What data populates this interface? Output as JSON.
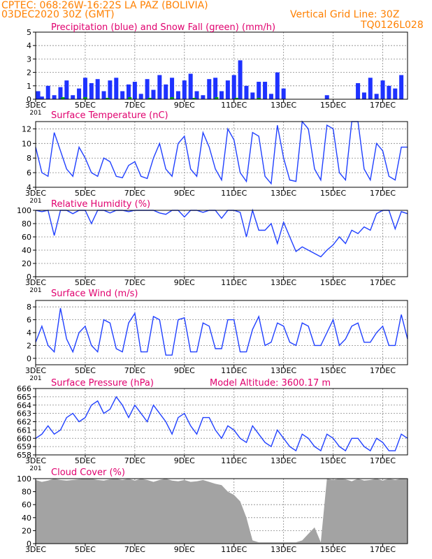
{
  "header": {
    "line1": "CPTEC:   068:26W-16:22S   LA PAZ (BOLIVIA)",
    "line2": "03DEC2020 30Z (GMT)",
    "grid_note": "Vertical Grid Line: 30Z",
    "code": "TQ0126L028"
  },
  "x_tick_labels": [
    "3DEC",
    "5DEC",
    "7DEC",
    "9DEC",
    "11DEC",
    "13DEC",
    "15DEC",
    "17DEC"
  ],
  "x_tick_days": [
    0,
    2,
    4,
    6,
    8,
    10,
    12,
    14
  ],
  "x_range_days": [
    0,
    15
  ],
  "stub_label": "201",
  "colors": {
    "title": "#e0006e",
    "line": "#2040ff",
    "precip": "#1e32ff",
    "snow": "#00b000",
    "cloud": "#a3a3a3",
    "header": "#ff8000"
  },
  "chart_data": [
    {
      "type": "bar",
      "title": "Precipitation (blue) and Snow Fall (green) (mm/h)",
      "ylim": [
        0,
        5
      ],
      "yticks": [
        0,
        1,
        2,
        3,
        4,
        5
      ],
      "series": [
        {
          "name": "Precipitation",
          "color": "#1e32ff",
          "x": [
            0.1,
            0.25,
            0.5,
            0.75,
            1.0,
            1.25,
            1.5,
            1.75,
            2.0,
            2.25,
            2.5,
            2.75,
            3.0,
            3.25,
            3.5,
            3.75,
            4.0,
            4.25,
            4.5,
            4.75,
            5.0,
            5.25,
            5.5,
            5.75,
            6.0,
            6.25,
            6.5,
            6.75,
            7.0,
            7.25,
            7.5,
            7.75,
            8.0,
            8.25,
            8.5,
            8.75,
            9.0,
            9.25,
            9.5,
            9.75,
            10.0,
            11.75,
            13.0,
            13.25,
            13.5,
            13.75,
            14.0,
            14.25,
            14.5,
            14.75
          ],
          "values": [
            0.6,
            0.2,
            1.0,
            0.3,
            0.9,
            1.4,
            0.3,
            0.8,
            1.6,
            1.2,
            1.5,
            0.6,
            1.4,
            1.6,
            0.6,
            1.1,
            1.3,
            0.4,
            1.5,
            0.7,
            1.8,
            1.1,
            1.6,
            0.6,
            1.4,
            1.9,
            0.6,
            0.3,
            1.5,
            1.6,
            0.6,
            1.4,
            1.8,
            2.9,
            1.0,
            0.5,
            1.3,
            1.3,
            0.4,
            2.0,
            0.8,
            0.3,
            1.2,
            0.5,
            1.6,
            0.4,
            1.4,
            1.0,
            0.8,
            1.8
          ]
        },
        {
          "name": "Snow Fall",
          "color": "#00b000",
          "x": [
            1.1,
            2.0,
            2.9,
            3.8,
            4.6,
            5.5,
            6.4,
            7.3,
            8.1,
            9.0
          ],
          "values": [
            0.15,
            0.15,
            0.1,
            0.15,
            0.1,
            0.15,
            0.1,
            0.15,
            0.1,
            0.1
          ]
        }
      ]
    },
    {
      "type": "line",
      "title": "Surface Temperature (nC)",
      "ylim": [
        4,
        13
      ],
      "yticks": [
        4,
        6,
        8,
        10,
        12
      ],
      "x": [
        0,
        0.25,
        0.5,
        0.75,
        1.0,
        1.25,
        1.5,
        1.75,
        2.0,
        2.25,
        2.5,
        2.75,
        3.0,
        3.25,
        3.5,
        3.75,
        4.0,
        4.25,
        4.5,
        4.75,
        5.0,
        5.25,
        5.5,
        5.75,
        6.0,
        6.25,
        6.5,
        6.75,
        7.0,
        7.25,
        7.5,
        7.75,
        8.0,
        8.25,
        8.5,
        8.75,
        9.0,
        9.25,
        9.5,
        9.75,
        10.0,
        10.25,
        10.5,
        10.75,
        11.0,
        11.25,
        11.5,
        11.75,
        12.0,
        12.25,
        12.5,
        12.75,
        13.0,
        13.25,
        13.5,
        13.75,
        14.0,
        14.25,
        14.5,
        14.75,
        15.0
      ],
      "values": [
        9.5,
        6.0,
        5.5,
        11.5,
        9.0,
        6.5,
        5.5,
        9.5,
        8.0,
        6.0,
        5.5,
        8.0,
        7.5,
        5.5,
        5.3,
        7.0,
        7.5,
        5.5,
        5.2,
        8.0,
        10.0,
        6.5,
        5.5,
        10.0,
        11.0,
        6.5,
        5.5,
        11.5,
        9.5,
        6.5,
        5.0,
        12.0,
        10.5,
        6.0,
        4.8,
        11.5,
        11.0,
        5.5,
        4.5,
        12.5,
        8.0,
        5.0,
        4.8,
        13.0,
        12.0,
        6.5,
        5.0,
        12.5,
        12.0,
        6.0,
        5.0,
        13.0,
        13.0,
        6.5,
        5.0,
        10.0,
        9.0,
        5.5,
        5.0,
        9.5,
        9.5
      ]
    },
    {
      "type": "line",
      "title": "Relative Humidity (%)",
      "ylim": [
        0,
        100
      ],
      "yticks": [
        0,
        20,
        40,
        60,
        80,
        100
      ],
      "x": [
        0,
        0.25,
        0.5,
        0.75,
        1.0,
        1.25,
        1.5,
        1.75,
        2.0,
        2.25,
        2.5,
        2.75,
        3.0,
        3.25,
        3.5,
        3.75,
        4.0,
        4.25,
        4.5,
        4.75,
        5.0,
        5.25,
        5.5,
        5.75,
        6.0,
        6.25,
        6.5,
        6.75,
        7.0,
        7.25,
        7.5,
        7.75,
        8.0,
        8.25,
        8.5,
        8.75,
        9.0,
        9.25,
        9.5,
        9.75,
        10.0,
        10.25,
        10.5,
        10.75,
        11.0,
        11.25,
        11.5,
        11.75,
        12.0,
        12.25,
        12.5,
        12.75,
        13.0,
        13.25,
        13.5,
        13.75,
        14.0,
        14.25,
        14.5,
        14.75,
        15.0
      ],
      "values": [
        100,
        98,
        100,
        62,
        100,
        100,
        95,
        100,
        100,
        80,
        100,
        100,
        96,
        100,
        100,
        98,
        100,
        100,
        100,
        100,
        96,
        94,
        100,
        100,
        90,
        100,
        100,
        97,
        100,
        100,
        88,
        100,
        100,
        97,
        60,
        100,
        70,
        70,
        80,
        50,
        82,
        60,
        38,
        45,
        40,
        35,
        30,
        40,
        48,
        60,
        50,
        70,
        65,
        75,
        70,
        95,
        100,
        100,
        72,
        98,
        95
      ]
    },
    {
      "type": "line",
      "title": "Surface Wind (m/s)",
      "ylim": [
        -1,
        9
      ],
      "yticks": [
        0,
        2,
        4,
        6,
        8
      ],
      "x": [
        0,
        0.25,
        0.5,
        0.75,
        1.0,
        1.25,
        1.5,
        1.75,
        2.0,
        2.25,
        2.5,
        2.75,
        3.0,
        3.25,
        3.5,
        3.75,
        4.0,
        4.25,
        4.5,
        4.75,
        5.0,
        5.25,
        5.5,
        5.75,
        6.0,
        6.25,
        6.5,
        6.75,
        7.0,
        7.25,
        7.5,
        7.75,
        8.0,
        8.25,
        8.5,
        8.75,
        9.0,
        9.25,
        9.5,
        9.75,
        10.0,
        10.25,
        10.5,
        10.75,
        11.0,
        11.25,
        11.5,
        11.75,
        12.0,
        12.25,
        12.5,
        12.75,
        13.0,
        13.25,
        13.5,
        13.75,
        14.0,
        14.25,
        14.5,
        14.75,
        15.0
      ],
      "values": [
        2.5,
        5.0,
        2.0,
        1.0,
        7.8,
        3.0,
        1.0,
        4.0,
        5.0,
        2.0,
        1.0,
        6.0,
        5.5,
        1.5,
        1.0,
        5.5,
        7.0,
        1.0,
        1.0,
        6.5,
        6.0,
        0.5,
        0.5,
        6.0,
        6.3,
        1.0,
        1.0,
        5.5,
        5.0,
        1.5,
        1.5,
        6.0,
        6.0,
        1.0,
        1.0,
        4.5,
        6.5,
        2.0,
        2.5,
        5.5,
        5.0,
        2.5,
        2.0,
        5.5,
        5.0,
        2.0,
        2.0,
        4.0,
        6.0,
        2.0,
        3.0,
        5.0,
        5.5,
        2.5,
        2.5,
        4.0,
        5.0,
        2.0,
        2.0,
        6.8,
        3.0
      ]
    },
    {
      "type": "line",
      "title": "Surface Pressure (hPa)",
      "subtitle": "Model Altitude: 3600.17 m",
      "ylim": [
        658,
        666
      ],
      "yticks": [
        658,
        659,
        660,
        661,
        662,
        663,
        664,
        665,
        666
      ],
      "x": [
        0,
        0.25,
        0.5,
        0.75,
        1.0,
        1.25,
        1.5,
        1.75,
        2.0,
        2.25,
        2.5,
        2.75,
        3.0,
        3.25,
        3.5,
        3.75,
        4.0,
        4.25,
        4.5,
        4.75,
        5.0,
        5.25,
        5.5,
        5.75,
        6.0,
        6.25,
        6.5,
        6.75,
        7.0,
        7.25,
        7.5,
        7.75,
        8.0,
        8.25,
        8.5,
        8.75,
        9.0,
        9.25,
        9.5,
        9.75,
        10.0,
        10.25,
        10.5,
        10.75,
        11.0,
        11.25,
        11.5,
        11.75,
        12.0,
        12.25,
        12.5,
        12.75,
        13.0,
        13.25,
        13.5,
        13.75,
        14.0,
        14.25,
        14.5,
        14.75,
        15.0
      ],
      "values": [
        660.0,
        660.5,
        661.5,
        660.5,
        661.0,
        662.5,
        663.0,
        662.0,
        662.5,
        664.0,
        664.5,
        663.0,
        663.5,
        665.0,
        664.0,
        662.5,
        664.0,
        663.0,
        662.0,
        664.0,
        663.0,
        662.0,
        660.5,
        662.5,
        663.0,
        661.5,
        660.5,
        662.5,
        662.5,
        661.0,
        660.0,
        661.5,
        661.0,
        660.0,
        659.5,
        661.5,
        660.5,
        659.5,
        659.0,
        661.0,
        660.0,
        659.0,
        658.5,
        660.5,
        660.0,
        659.0,
        658.5,
        660.5,
        660.0,
        659.0,
        658.5,
        660.0,
        660.0,
        659.0,
        658.5,
        660.0,
        659.5,
        658.5,
        658.5,
        660.5,
        660.0
      ]
    },
    {
      "type": "area",
      "title": "Cloud Cover (%)",
      "ylim": [
        0,
        100
      ],
      "yticks": [
        0,
        20,
        40,
        60,
        80,
        100
      ],
      "x": [
        0,
        0.25,
        0.5,
        0.75,
        1.0,
        1.25,
        1.5,
        1.75,
        2.0,
        2.25,
        2.5,
        2.75,
        3.0,
        3.25,
        3.5,
        3.75,
        4.0,
        4.25,
        4.5,
        4.75,
        5.0,
        5.25,
        5.5,
        5.75,
        6.0,
        6.25,
        6.5,
        6.75,
        7.0,
        7.25,
        7.5,
        7.75,
        8.0,
        8.25,
        8.5,
        8.75,
        9.0,
        9.25,
        9.5,
        9.75,
        10.0,
        10.25,
        10.5,
        10.75,
        11.0,
        11.25,
        11.5,
        11.75,
        12.0,
        12.25,
        12.5,
        12.75,
        13.0,
        13.25,
        13.5,
        13.75,
        14.0,
        14.25,
        14.5,
        14.75,
        15.0
      ],
      "values": [
        98,
        95,
        97,
        100,
        98,
        97,
        98,
        99,
        100,
        100,
        98,
        97,
        99,
        100,
        98,
        100,
        97,
        100,
        98,
        95,
        98,
        100,
        97,
        96,
        98,
        95,
        96,
        98,
        95,
        92,
        90,
        80,
        75,
        65,
        40,
        5,
        2,
        2,
        2,
        2,
        2,
        2,
        2,
        5,
        15,
        25,
        2,
        100,
        98,
        100,
        99,
        96,
        100,
        97,
        98,
        100,
        97,
        100,
        98,
        100,
        99
      ]
    }
  ]
}
